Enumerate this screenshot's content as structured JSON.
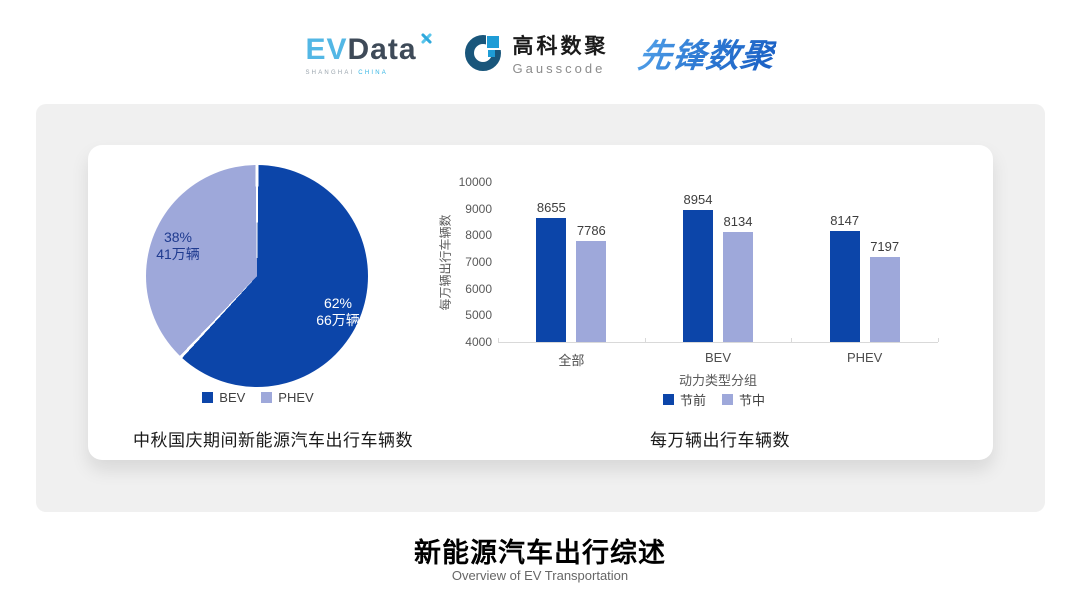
{
  "header": {
    "evdata": {
      "ev": "EV",
      "data": "Data",
      "sub_left": "SHANGHAI",
      "sub_right": "CHINA"
    },
    "gausscode": {
      "cn": "高科数聚",
      "en": "Gausscode"
    },
    "pioneer": {
      "text": "先锋数聚"
    }
  },
  "chart_data": [
    {
      "type": "pie",
      "title": "中秋国庆期间新能源汽车出行车辆数",
      "start_angle_deg": 0,
      "direction": "clockwise",
      "legend_position": "bottom",
      "slices": [
        {
          "name": "BEV",
          "value_pct": 62,
          "label": "62%",
          "sublabel": "66万辆",
          "color": "#0C45A9",
          "label_color": "#FFFFFF"
        },
        {
          "name": "PHEV",
          "value_pct": 38,
          "label": "38%",
          "sublabel": "41万辆",
          "color": "#9EA8DA",
          "label_color": "#1E3A8F"
        }
      ]
    },
    {
      "type": "bar",
      "title": "每万辆出行车辆数",
      "categories": [
        "全部",
        "BEV",
        "PHEV"
      ],
      "series": [
        {
          "name": "节前",
          "color": "#0C45A9",
          "values": [
            8655,
            8954,
            8147
          ]
        },
        {
          "name": "节中",
          "color": "#9EA8DA",
          "values": [
            7786,
            8134,
            7197
          ]
        }
      ],
      "xlabel": "动力类型分组",
      "ylabel": "每万辆出行车辆数",
      "ylim": [
        4000,
        10000
      ],
      "ytick_step": 1000,
      "grid": false,
      "legend_position": "bottom",
      "data_labels": true
    }
  ],
  "footer": {
    "title": "新能源汽车出行综述",
    "subtitle": "Overview of EV Transportation"
  }
}
